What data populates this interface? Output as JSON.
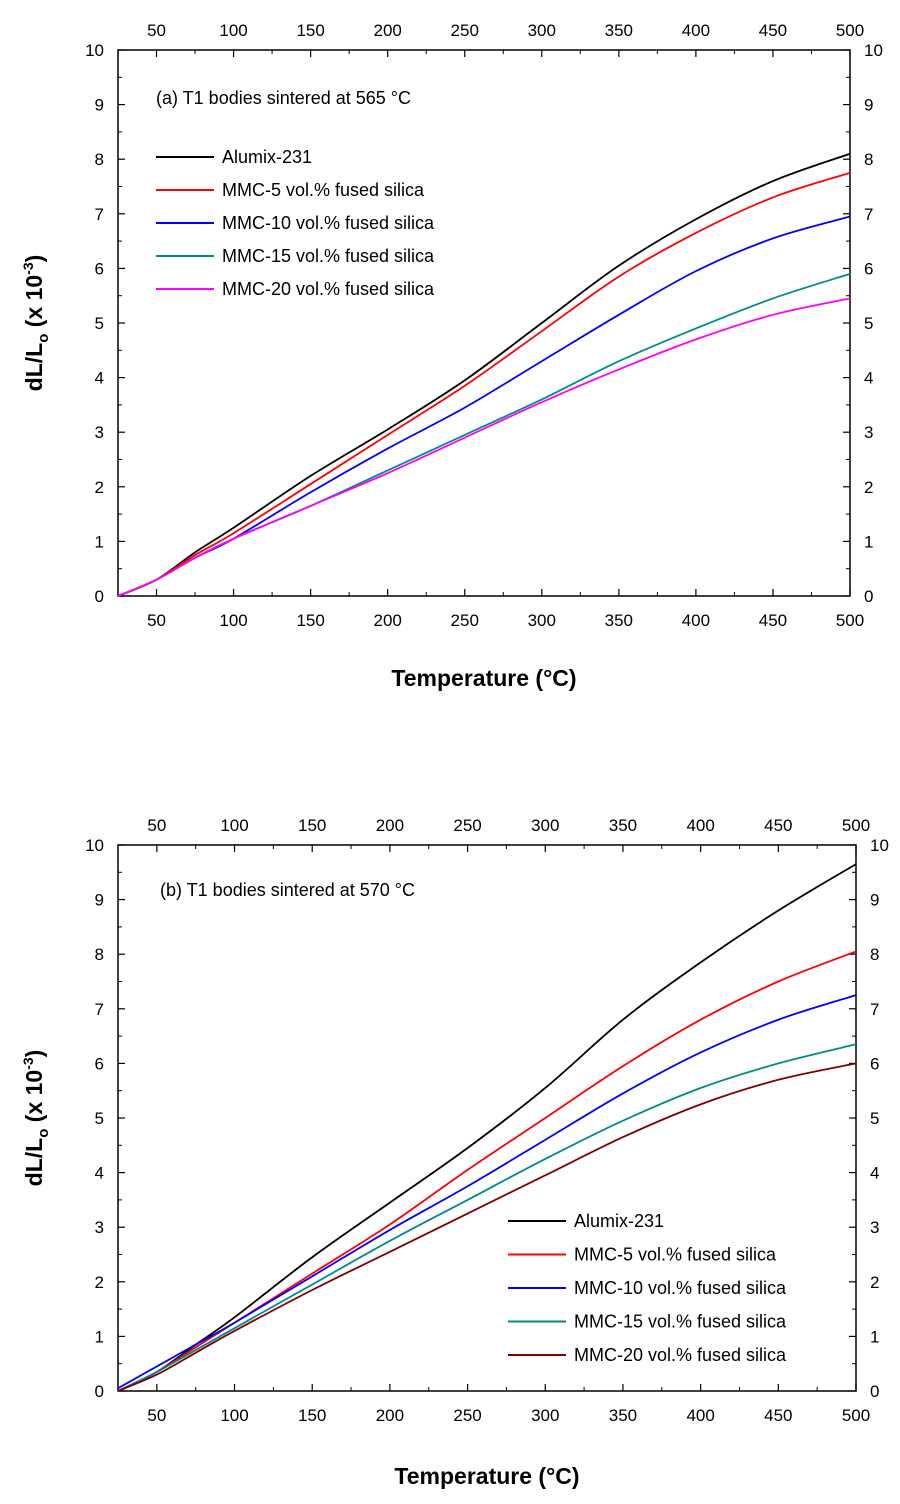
{
  "chart_data": [
    {
      "type": "line",
      "title": "(a) T1 bodies sintered at 565 °C",
      "xlabel": "Temperature (°C)",
      "ylabel_main": "dL/L",
      "ylabel_sub": "o",
      "ylabel_rest": " (x 10",
      "ylabel_sup": "-3",
      "ylabel_end": ")",
      "xlim": [
        25,
        500
      ],
      "ylim": [
        0,
        10
      ],
      "xticks": [
        50,
        100,
        150,
        200,
        250,
        300,
        350,
        400,
        450,
        500
      ],
      "yticks": [
        0,
        1,
        2,
        3,
        4,
        5,
        6,
        7,
        8,
        9,
        10
      ],
      "legend_position": "upper-left",
      "series": [
        {
          "name": "Alumix-231",
          "color": "#000000",
          "x": [
            25,
            50,
            75,
            100,
            150,
            200,
            250,
            300,
            350,
            400,
            450,
            500
          ],
          "y": [
            0,
            0.3,
            0.8,
            1.25,
            2.2,
            3.05,
            3.95,
            5.0,
            6.05,
            6.9,
            7.6,
            8.1
          ]
        },
        {
          "name": "MMC-5 vol.% fused silica",
          "color": "#ff0000",
          "x": [
            25,
            50,
            75,
            100,
            150,
            200,
            250,
            300,
            350,
            400,
            450,
            500
          ],
          "y": [
            0,
            0.3,
            0.75,
            1.15,
            2.05,
            2.95,
            3.85,
            4.85,
            5.85,
            6.65,
            7.3,
            7.75
          ]
        },
        {
          "name": "MMC-10 vol.% fused silica",
          "color": "#0000ff",
          "x": [
            25,
            50,
            75,
            100,
            150,
            200,
            250,
            300,
            350,
            400,
            450,
            500
          ],
          "y": [
            0,
            0.3,
            0.7,
            1.05,
            1.9,
            2.7,
            3.45,
            4.3,
            5.15,
            5.95,
            6.55,
            6.95
          ]
        },
        {
          "name": "MMC-15 vol.% fused silica",
          "color": "#008b8b",
          "x": [
            25,
            50,
            75,
            100,
            150,
            200,
            250,
            300,
            350,
            400,
            450,
            500
          ],
          "y": [
            0,
            0.3,
            0.7,
            1.05,
            1.65,
            2.3,
            2.95,
            3.6,
            4.3,
            4.9,
            5.45,
            5.9
          ]
        },
        {
          "name": "MMC-20 vol.% fused silica",
          "color": "#ff00ff",
          "x": [
            25,
            50,
            75,
            100,
            150,
            200,
            250,
            300,
            350,
            400,
            450,
            500
          ],
          "y": [
            0,
            0.3,
            0.7,
            1.05,
            1.65,
            2.25,
            2.9,
            3.55,
            4.15,
            4.7,
            5.15,
            5.45
          ]
        }
      ]
    },
    {
      "type": "line",
      "title": "(b) T1 bodies sintered at 570 °C",
      "xlabel": "Temperature (°C)",
      "ylabel_main": "dL/L",
      "ylabel_sub": "o",
      "ylabel_rest": " (x 10",
      "ylabel_sup": "-3",
      "ylabel_end": ")",
      "xlim": [
        25,
        500
      ],
      "ylim": [
        0,
        10
      ],
      "xticks": [
        50,
        100,
        150,
        200,
        250,
        300,
        350,
        400,
        450,
        500
      ],
      "yticks": [
        0,
        1,
        2,
        3,
        4,
        5,
        6,
        7,
        8,
        9,
        10
      ],
      "legend_position": "lower-right",
      "series": [
        {
          "name": "Alumix-231",
          "color": "#000000",
          "x": [
            25,
            50,
            75,
            100,
            150,
            200,
            250,
            300,
            350,
            400,
            450,
            500
          ],
          "y": [
            0,
            0.35,
            0.85,
            1.35,
            2.45,
            3.45,
            4.45,
            5.55,
            6.8,
            7.85,
            8.8,
            9.65
          ]
        },
        {
          "name": "MMC-5 vol.% fused silica",
          "color": "#ff0000",
          "x": [
            25,
            50,
            75,
            100,
            150,
            200,
            250,
            300,
            350,
            400,
            450,
            500
          ],
          "y": [
            0,
            0.35,
            0.8,
            1.25,
            2.15,
            3.05,
            4.05,
            5.0,
            5.95,
            6.8,
            7.5,
            8.05
          ]
        },
        {
          "name": "MMC-10 vol.% fused silica",
          "color": "#0000ff",
          "x": [
            25,
            50,
            75,
            100,
            150,
            200,
            250,
            300,
            350,
            400,
            450,
            500
          ],
          "y": [
            0.05,
            0.45,
            0.85,
            1.25,
            2.1,
            2.95,
            3.75,
            4.6,
            5.45,
            6.2,
            6.8,
            7.25
          ]
        },
        {
          "name": "MMC-15 vol.% fused silica",
          "color": "#008b8b",
          "x": [
            25,
            50,
            75,
            100,
            150,
            200,
            250,
            300,
            350,
            400,
            450,
            500
          ],
          "y": [
            0,
            0.35,
            0.75,
            1.15,
            1.95,
            2.75,
            3.5,
            4.25,
            4.95,
            5.55,
            6.0,
            6.35
          ]
        },
        {
          "name": "MMC-20 vol.% fused silica",
          "color": "#800000",
          "x": [
            25,
            50,
            75,
            100,
            150,
            200,
            250,
            300,
            350,
            400,
            450,
            500
          ],
          "y": [
            0,
            0.3,
            0.7,
            1.1,
            1.85,
            2.55,
            3.25,
            3.95,
            4.65,
            5.25,
            5.7,
            6.0
          ]
        }
      ]
    }
  ]
}
